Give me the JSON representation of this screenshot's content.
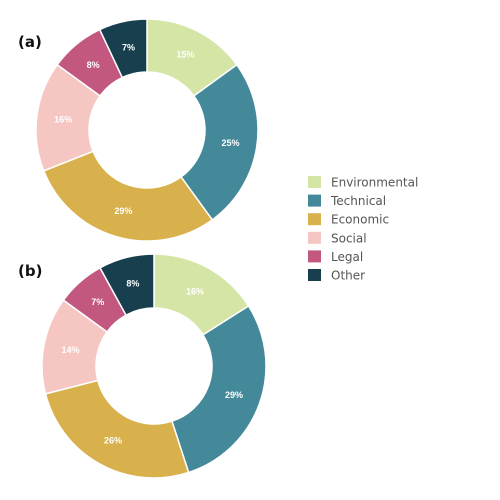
{
  "colors": {
    "Environmental": "#d5e5a6",
    "Technical": "#44899a",
    "Economic": "#d8b14c",
    "Social": "#f6c6c2",
    "Legal": "#c2577f",
    "Other": "#173f4d",
    "label_text": "#ffffff"
  },
  "chart_data": [
    {
      "type": "pie",
      "panel_label": "(a)",
      "categories": [
        "Environmental",
        "Technical",
        "Economic",
        "Social",
        "Legal",
        "Other"
      ],
      "values": [
        15,
        25,
        29,
        16,
        8,
        7
      ],
      "labels": [
        "15%",
        "25%",
        "29%",
        "16%",
        "8%",
        "7%"
      ],
      "donut": true,
      "legend_placement": "right"
    },
    {
      "type": "pie",
      "panel_label": "(b)",
      "categories": [
        "Environmental",
        "Technical",
        "Economic",
        "Social",
        "Legal",
        "Other"
      ],
      "values": [
        16,
        29,
        26,
        14,
        7,
        8
      ],
      "labels": [
        "16%",
        "29%",
        "26%",
        "14%",
        "7%",
        "8%"
      ],
      "donut": true,
      "legend_placement": "right"
    }
  ],
  "legend": {
    "items": [
      "Environmental",
      "Technical",
      "Economic",
      "Social",
      "Legal",
      "Other"
    ]
  }
}
